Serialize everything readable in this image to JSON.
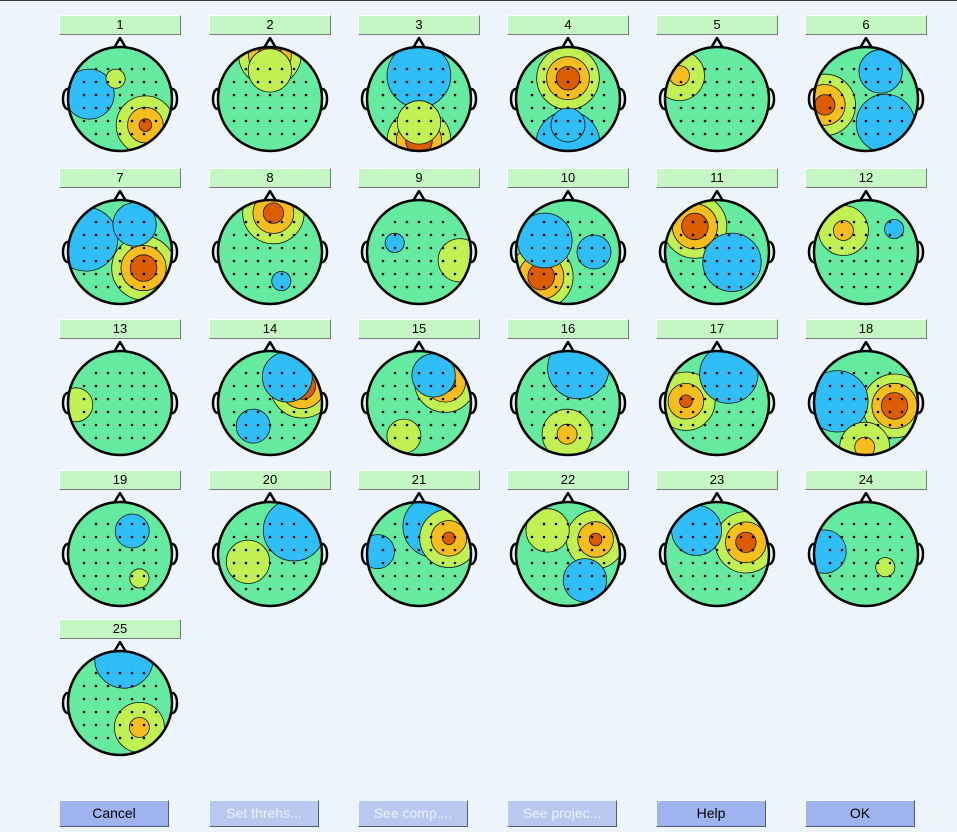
{
  "components": [
    "1",
    "2",
    "3",
    "4",
    "5",
    "6",
    "7",
    "8",
    "9",
    "10",
    "11",
    "12",
    "13",
    "14",
    "15",
    "16",
    "17",
    "18",
    "19",
    "20",
    "21",
    "22",
    "23",
    "24",
    "25"
  ],
  "topo_spots": [
    [
      {
        "a": 0.8,
        "r": 0.7,
        "v": 0.8
      },
      {
        "a": 3.3,
        "r": 0.6,
        "v": -0.6
      },
      {
        "a": 4.5,
        "r": 0.4,
        "v": 0.3
      }
    ],
    [
      {
        "a": 4.71,
        "r": 0.85,
        "v": 0.95
      },
      {
        "a": 4.71,
        "r": 0.55,
        "v": 0.5
      }
    ],
    [
      {
        "a": 4.71,
        "r": 0.45,
        "v": -1.0
      },
      {
        "a": 1.57,
        "r": 0.8,
        "v": 1.0
      },
      {
        "a": 1.57,
        "r": 0.45,
        "v": 0.5
      }
    ],
    [
      {
        "a": 4.71,
        "r": 0.4,
        "v": 0.95
      },
      {
        "a": 1.57,
        "r": 0.85,
        "v": -1.0
      },
      {
        "a": 1.57,
        "r": 0.5,
        "v": -0.4
      }
    ],
    [
      {
        "a": 3.7,
        "r": 0.85,
        "v": 0.6
      }
    ],
    [
      {
        "a": 3.0,
        "r": 0.8,
        "v": 0.9
      },
      {
        "a": 5.2,
        "r": 0.6,
        "v": -0.5
      },
      {
        "a": 0.9,
        "r": 0.6,
        "v": -0.8
      }
    ],
    [
      {
        "a": 3.5,
        "r": 0.7,
        "v": -1.0
      },
      {
        "a": 0.6,
        "r": 0.55,
        "v": 1.0
      },
      {
        "a": 5.2,
        "r": 0.6,
        "v": -0.5
      }
    ],
    [
      {
        "a": 4.8,
        "r": 0.75,
        "v": 0.9
      },
      {
        "a": 1.2,
        "r": 0.6,
        "v": -0.3
      }
    ],
    [
      {
        "a": 0.2,
        "r": 0.8,
        "v": 0.5
      },
      {
        "a": 3.5,
        "r": 0.5,
        "v": -0.3
      }
    ],
    [
      {
        "a": 2.4,
        "r": 0.7,
        "v": 1.0
      },
      {
        "a": 3.6,
        "r": 0.5,
        "v": -0.7
      },
      {
        "a": 0.0,
        "r": 0.5,
        "v": -0.4
      }
    ],
    [
      {
        "a": 4.0,
        "r": 0.65,
        "v": 1.0
      },
      {
        "a": 0.6,
        "r": 0.35,
        "v": -0.8
      }
    ],
    [
      {
        "a": 3.9,
        "r": 0.6,
        "v": 0.6
      },
      {
        "a": 5.6,
        "r": 0.7,
        "v": -0.3
      }
    ],
    [
      {
        "a": 3.1,
        "r": 0.85,
        "v": 0.4
      },
      {
        "a": 0.8,
        "r": 0.4,
        "v": -0.2
      }
    ],
    [
      {
        "a": 5.8,
        "r": 0.7,
        "v": 1.0
      },
      {
        "a": 5.3,
        "r": 0.6,
        "v": -0.6
      },
      {
        "a": 2.2,
        "r": 0.55,
        "v": -0.4
      }
    ],
    [
      {
        "a": 5.6,
        "r": 0.65,
        "v": 0.9
      },
      {
        "a": 5.2,
        "r": 0.6,
        "v": -0.5
      },
      {
        "a": 2.0,
        "r": 0.7,
        "v": 0.4
      }
    ],
    [
      {
        "a": 5.0,
        "r": 0.7,
        "v": -0.9
      },
      {
        "a": 1.6,
        "r": 0.6,
        "v": 0.6
      }
    ],
    [
      {
        "a": 3.2,
        "r": 0.6,
        "v": 0.8
      },
      {
        "a": 5.1,
        "r": 0.6,
        "v": -0.8
      }
    ],
    [
      {
        "a": 0.1,
        "r": 0.55,
        "v": 1.0
      },
      {
        "a": 3.2,
        "r": 0.55,
        "v": -0.9
      },
      {
        "a": 1.6,
        "r": 0.85,
        "v": 0.6
      }
    ],
    [
      {
        "a": 5.2,
        "r": 0.5,
        "v": -0.4
      },
      {
        "a": 0.9,
        "r": 0.6,
        "v": 0.3
      }
    ],
    [
      {
        "a": 5.5,
        "r": 0.65,
        "v": -0.9
      },
      {
        "a": 2.8,
        "r": 0.45,
        "v": 0.5
      }
    ],
    [
      {
        "a": 5.2,
        "r": 0.6,
        "v": -0.9
      },
      {
        "a": 5.8,
        "r": 0.65,
        "v": 0.8
      },
      {
        "a": 3.2,
        "r": 0.8,
        "v": -0.4
      }
    ],
    [
      {
        "a": 5.8,
        "r": 0.6,
        "v": 0.8
      },
      {
        "a": 4.0,
        "r": 0.6,
        "v": 0.5
      },
      {
        "a": 1.0,
        "r": 0.6,
        "v": -0.5
      }
    ],
    [
      {
        "a": 5.9,
        "r": 0.6,
        "v": 0.9
      },
      {
        "a": 4.0,
        "r": 0.6,
        "v": -0.6
      }
    ],
    [
      {
        "a": 3.2,
        "r": 0.8,
        "v": -0.5
      },
      {
        "a": 0.6,
        "r": 0.45,
        "v": 0.3
      }
    ],
    [
      {
        "a": 4.8,
        "r": 0.85,
        "v": -0.8
      },
      {
        "a": 0.9,
        "r": 0.6,
        "v": 0.6
      }
    ]
  ],
  "buttons": {
    "cancel": "Cancel",
    "set_threshold": "Set threhs...",
    "see_comp": "See comp....",
    "see_proj": "See projec...",
    "help": "Help",
    "ok": "OK"
  }
}
